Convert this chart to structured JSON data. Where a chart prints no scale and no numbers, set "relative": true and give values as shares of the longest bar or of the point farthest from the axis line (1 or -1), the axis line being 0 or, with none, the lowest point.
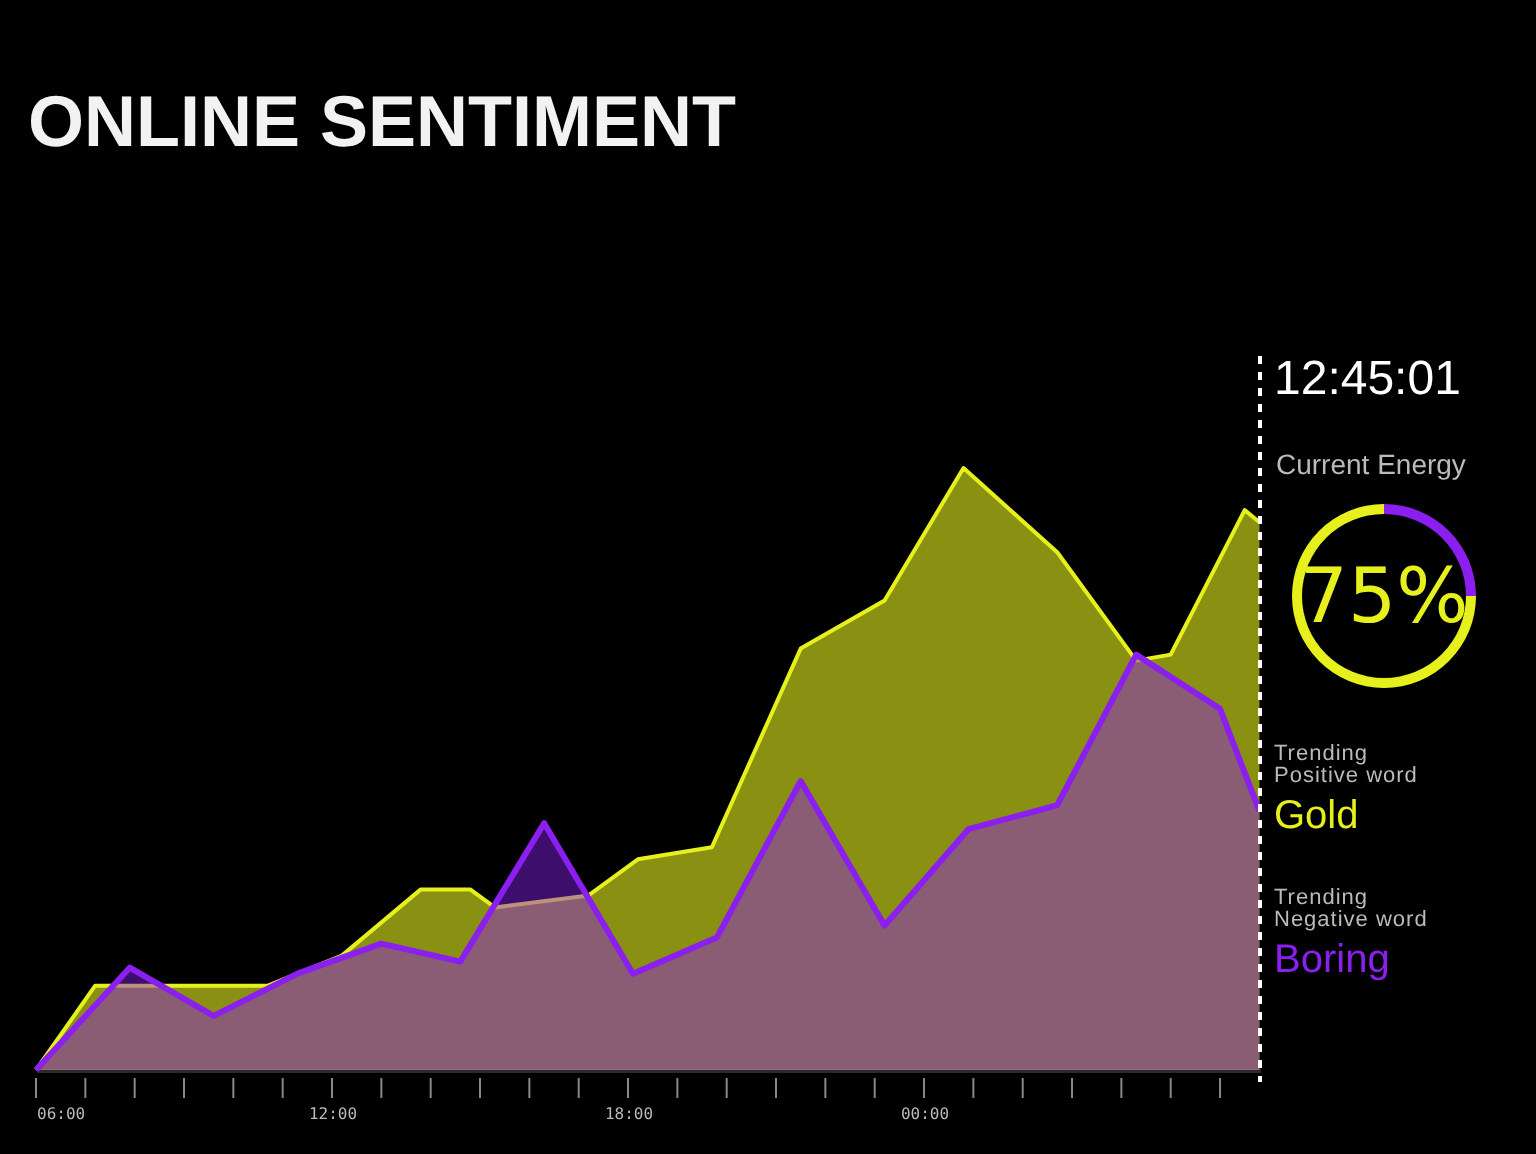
{
  "chart_data": [
    {
      "type": "area",
      "title": "ONLINE SENTIMENT",
      "relative": true,
      "grid": false,
      "xlim": [
        6,
        30.81
      ],
      "xticks": [
        {
          "value": 6,
          "label": "06:00"
        },
        {
          "value": 7,
          "label": null
        },
        {
          "value": 8,
          "label": null
        },
        {
          "value": 9,
          "label": null
        },
        {
          "value": 10,
          "label": null
        },
        {
          "value": 11,
          "label": null
        },
        {
          "value": 12,
          "label": "12:00"
        },
        {
          "value": 13,
          "label": null
        },
        {
          "value": 14,
          "label": null
        },
        {
          "value": 15,
          "label": null
        },
        {
          "value": 16,
          "label": null
        },
        {
          "value": 17,
          "label": null
        },
        {
          "value": 18,
          "label": "18:00"
        },
        {
          "value": 19,
          "label": null
        },
        {
          "value": 20,
          "label": null
        },
        {
          "value": 21,
          "label": null
        },
        {
          "value": 22,
          "label": null
        },
        {
          "value": 23,
          "label": null
        },
        {
          "value": 24,
          "label": "00:00"
        },
        {
          "value": 25,
          "label": null
        },
        {
          "value": 26,
          "label": null
        },
        {
          "value": 27,
          "label": null
        },
        {
          "value": 28,
          "label": null
        },
        {
          "value": 29,
          "label": null
        },
        {
          "value": 30,
          "label": null
        }
      ],
      "series": [
        {
          "color": "#e6f01c",
          "x": [
            6.0,
            7.2,
            10.7,
            12.2,
            13.8,
            14.8,
            15.3,
            17.2,
            18.2,
            19.7,
            21.5,
            23.2,
            24.8,
            26.7,
            28.3,
            29.0,
            30.5,
            30.8
          ],
          "values": [
            0,
            0.14,
            0.14,
            0.19,
            0.3,
            0.3,
            0.27,
            0.29,
            0.35,
            0.37,
            0.7,
            0.78,
            1,
            0.86,
            0.68,
            0.69,
            0.93,
            0.91
          ]
        },
        {
          "color": "#8a1ff0",
          "x": [
            6.0,
            7.9,
            9.6,
            11.3,
            13.0,
            14.6,
            16.3,
            18.1,
            19.8,
            21.5,
            23.2,
            24.9,
            26.7,
            28.3,
            30.0,
            30.8
          ],
          "values": [
            0,
            0.17,
            0.09,
            0.16,
            0.21,
            0.18,
            0.41,
            0.16,
            0.22,
            0.48,
            0.24,
            0.4,
            0.44,
            0.69,
            0.6,
            0.43
          ]
        }
      ],
      "ref_lines": [
        {
          "axis": "x",
          "value": 30.81,
          "color": "#ffffff",
          "line_style": "dashed"
        }
      ]
    },
    {
      "type": "donut",
      "title": "Current Energy",
      "categories": [
        null,
        null
      ],
      "values": [
        25,
        75
      ],
      "colors": [
        "#8a1ff0",
        "#e6f01c"
      ],
      "value_labels": [
        null,
        "75%"
      ]
    },
    {
      "type": "other",
      "annotations": [
        "12:45:01",
        "Trending Positive word",
        "Gold",
        "Trending Negative word",
        "Boring"
      ]
    }
  ]
}
